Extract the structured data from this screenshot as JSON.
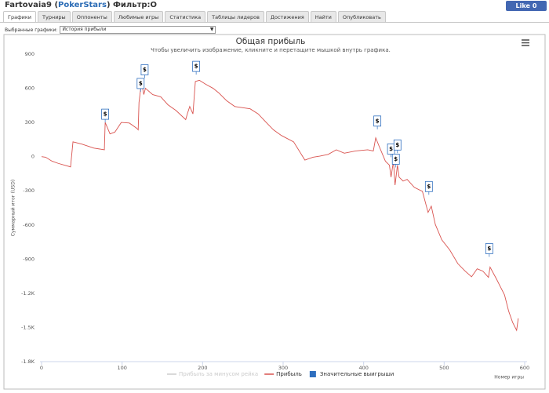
{
  "header": {
    "title_parts": [
      "Fartovaia9 (",
      "PokerStars",
      ") Фильтр:O"
    ],
    "like": "Like",
    "like_count": 0
  },
  "tabs": {
    "items": [
      "Графики",
      "Турниры",
      "Оппоненты",
      "Любимые игры",
      "Статистика",
      "Таблицы лидеров",
      "Достижения",
      "Найти",
      "Опубликовать"
    ],
    "active": 0
  },
  "selector": {
    "label": "Выбранные графики:",
    "value": "История прибыли"
  },
  "chart_data": {
    "type": "line",
    "title": "Общая прибыль",
    "subtitle": "Чтобы увеличить изображение, кликните и перетащите мышкой внутрь графика.",
    "x_label": "Номер игры",
    "y_label": "Суммарный итог (USD)",
    "xlim": [
      0,
      600
    ],
    "xticks": [
      0,
      100,
      200,
      300,
      400,
      500,
      600
    ],
    "ylim": [
      -1800,
      900
    ],
    "yticks": [
      900,
      600,
      300,
      0,
      -300,
      -600,
      -900,
      {
        "value": -1200,
        "label": "-1.2K"
      },
      {
        "value": -1500,
        "label": "-1.5K"
      },
      {
        "value": -1800,
        "label": "-1.8K"
      }
    ],
    "series": [
      {
        "name": "Прибыль за минусом рейка",
        "color": "#cccccc",
        "hidden": true
      },
      {
        "name": "Прибыль",
        "color": "#d9534f",
        "x": [
          0,
          5,
          13,
          21,
          36,
          39,
          50,
          65,
          78,
          79,
          85,
          91,
          99,
          109,
          118,
          120,
          121,
          124,
          127,
          129,
          138,
          148,
          157,
          167,
          179,
          181,
          184,
          188,
          191,
          196,
          204,
          213,
          220,
          230,
          240,
          259,
          269,
          279,
          288,
          298,
          313,
          327,
          337,
          346,
          356,
          366,
          376,
          390,
          405,
          412,
          415,
          419,
          427,
          432,
          434,
          437,
          439,
          442,
          444,
          449,
          454,
          463,
          473,
          480,
          484,
          489,
          497,
          507,
          517,
          526,
          534,
          541,
          548,
          555,
          557,
          565,
          575,
          580,
          585,
          590,
          592
        ],
        "values": [
          0,
          -5,
          -40,
          -60,
          -90,
          130,
          110,
          75,
          60,
          300,
          200,
          215,
          300,
          295,
          250,
          235,
          475,
          650,
          545,
          600,
          545,
          525,
          455,
          405,
          325,
          375,
          440,
          375,
          660,
          670,
          635,
          600,
          560,
          490,
          440,
          420,
          375,
          300,
          235,
          185,
          130,
          -30,
          -5,
          5,
          20,
          60,
          30,
          50,
          60,
          50,
          165,
          95,
          -40,
          -75,
          -180,
          -40,
          -250,
          -75,
          -180,
          -215,
          -200,
          -270,
          -305,
          -490,
          -435,
          -595,
          -730,
          -820,
          -940,
          -1005,
          -1055,
          -985,
          -1005,
          -1060,
          -970,
          -1075,
          -1215,
          -1355,
          -1455,
          -1525,
          -1420
        ]
      },
      {
        "name": "Значительные выигрыши",
        "color": "#2f6fbf",
        "type": "flags",
        "label": "$",
        "x": [
          79,
          123,
          128,
          192,
          417,
          434,
          442,
          440,
          481,
          556
        ],
        "values": [
          300,
          570,
          690,
          720,
          240,
          -5,
          30,
          -95,
          -335,
          -880
        ]
      }
    ]
  }
}
